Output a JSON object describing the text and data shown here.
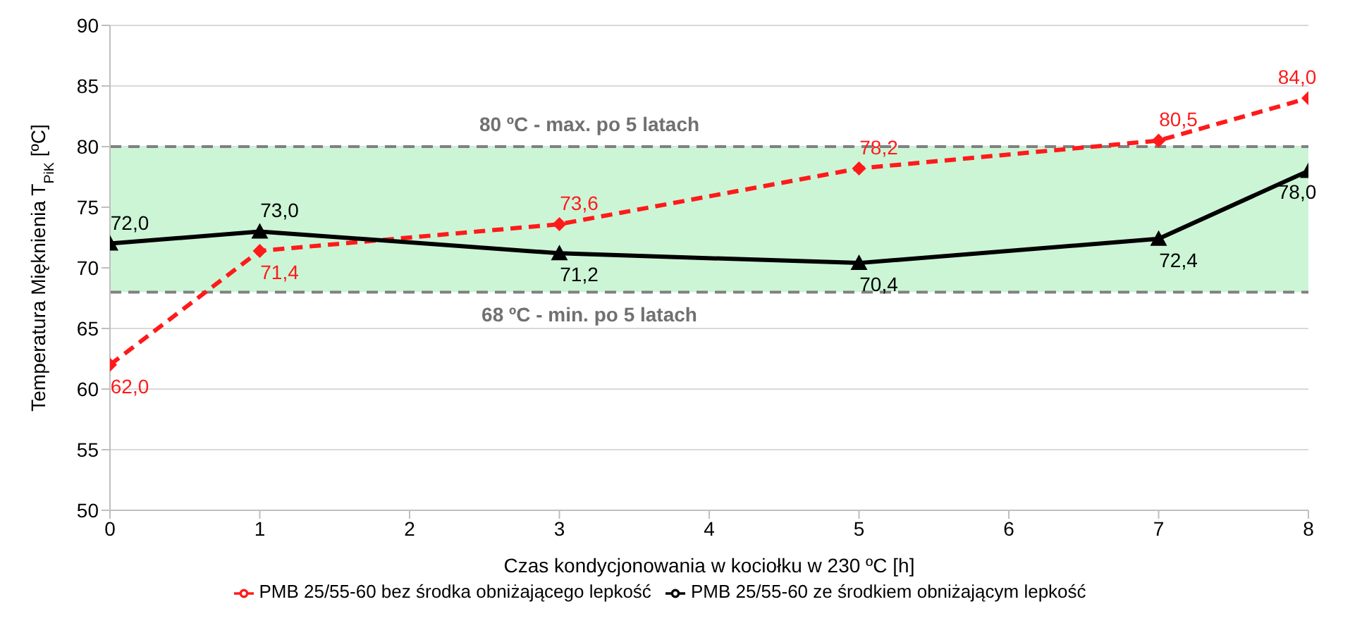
{
  "chart_data": {
    "type": "line",
    "xlabel": "Czas kondycjonowania w kociołku w 230 ºC [h]",
    "ylabel": "Temperatura Mięknienia T$_{PiK}$ [ºC]",
    "x": [
      0,
      1,
      3,
      5,
      7,
      8
    ],
    "series": [
      {
        "name": "PMB 25/55-60 bez środka obniżającego lepkość",
        "color": "#ff1a1a",
        "values": [
          62.0,
          71.4,
          73.6,
          78.2,
          80.5,
          84.0
        ],
        "value_labels": [
          "62,0",
          "71,4",
          "73,6",
          "78,2",
          "80,5",
          "84,0"
        ],
        "marker": "diamond",
        "line_style": "dashed"
      },
      {
        "name": "PMB 25/55-60 ze środkiem obniżającym lepkość",
        "color": "#000000",
        "values": [
          72.0,
          73.0,
          71.2,
          70.4,
          72.4,
          78.0
        ],
        "value_labels": [
          "72,0",
          "73,0",
          "71,2",
          "70,4",
          "72,4",
          "78,0"
        ],
        "marker": "triangle",
        "line_style": "solid"
      }
    ],
    "xlim": [
      0,
      8
    ],
    "xticks": [
      0,
      1,
      2,
      3,
      4,
      5,
      6,
      7,
      8
    ],
    "ylim": [
      50,
      90
    ],
    "yticks": [
      50,
      55,
      60,
      65,
      70,
      75,
      80,
      85,
      90
    ],
    "ref_lines": [
      {
        "axis": "y",
        "value": 80,
        "label": "80 ºC - max. po 5 latach",
        "color": "#808080",
        "line_style": "dashed"
      },
      {
        "axis": "y",
        "value": 68,
        "label": "68 ºC - min. po 5 latach",
        "color": "#808080",
        "line_style": "dashed"
      }
    ],
    "bands": [
      {
        "axis": "y",
        "from": 68,
        "to": 80,
        "color": "#ccf5d6"
      }
    ],
    "grid": "y",
    "legend": "bottom"
  }
}
